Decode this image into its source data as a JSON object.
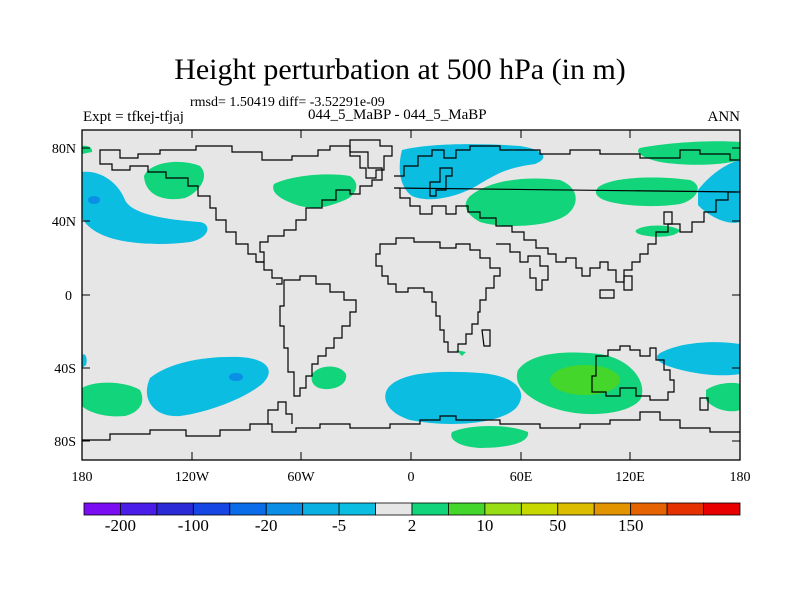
{
  "header": {
    "title": "Height perturbation at 500 hPa (in m)",
    "stats": "rmsd= 1.50419 diff= -3.52291e-09",
    "left": "Expt = tfkej-tfjaj",
    "center": "044_5_MaBP - 044_5_MaBP",
    "right": "ANN"
  },
  "axes": {
    "lat_ticks": [
      "80N",
      "40N",
      "0",
      "40S",
      "80S"
    ],
    "lon_ticks": [
      "180",
      "120W",
      "60W",
      "0",
      "60E",
      "120E",
      "180"
    ]
  },
  "colors": {
    "background_field": "#e6e6e6",
    "land_outline": "#000000",
    "pos_light": "#12d47a",
    "pos_mid": "#44d62a",
    "neg_light": "#0bbde0",
    "neg_mid": "#0a8ee6"
  },
  "colorbar": {
    "colors": [
      "#7a0df2",
      "#4b1de8",
      "#2a2ad6",
      "#1646e4",
      "#0b6cea",
      "#0a8ee6",
      "#0bb0e2",
      "#0bbde0",
      "#e6e6e6",
      "#12d47a",
      "#44d62a",
      "#99dd15",
      "#c7d800",
      "#dcbd00",
      "#e19300",
      "#e56300",
      "#e53100",
      "#e80000"
    ],
    "labels": [
      "-200",
      "-100",
      "-20",
      "-5",
      "2",
      "10",
      "50",
      "150"
    ]
  }
}
